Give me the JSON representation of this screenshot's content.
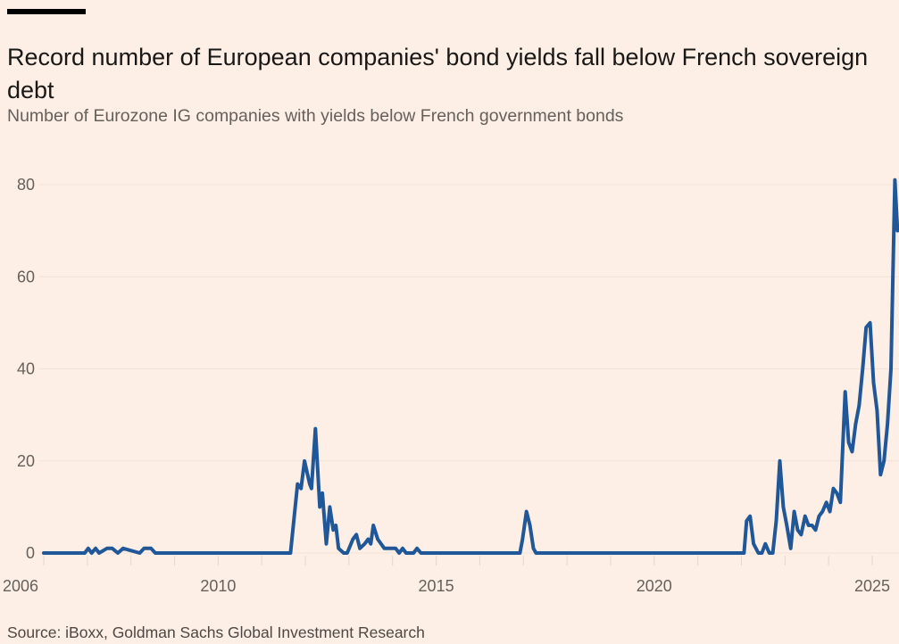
{
  "header": {
    "title": "Record number of European companies' bond yields fall below French sovereign debt",
    "subtitle": "Number of Eurozone IG companies with yields below French government bonds"
  },
  "footer": {
    "source": "Source: iBoxx, Goldman Sachs Global Investment Research"
  },
  "colors": {
    "background": "#fdefe5",
    "line": "#1f5799",
    "grid": "#f2e1d6",
    "text_muted": "#66605c"
  },
  "chart_data": {
    "type": "line",
    "title": "Record number of European companies' bond yields fall below French sovereign debt",
    "subtitle": "Number of Eurozone IG companies with yields below French government bonds",
    "xlabel": "",
    "ylabel": "",
    "xlim": [
      2006,
      2025.6
    ],
    "ylim": [
      0,
      80
    ],
    "grid": true,
    "y_ticks": [
      0,
      20,
      40,
      60,
      80
    ],
    "y_tick_labels": [
      "0",
      "20",
      "40",
      "60",
      "80"
    ],
    "x_ticks": [
      2006,
      2010,
      2015,
      2020,
      2025
    ],
    "x_tick_labels": [
      "2006",
      "2010",
      "2015",
      "2020",
      "2025"
    ],
    "x_minor_ticks": [
      2007,
      2008,
      2009,
      2011,
      2012,
      2013,
      2014,
      2016,
      2017,
      2018,
      2019,
      2021,
      2022,
      2023,
      2024
    ],
    "series": [
      {
        "name": "Eurozone IG companies with yields below French government bonds",
        "x": [
          2006.0,
          2006.94,
          2007.02,
          2007.1,
          2007.19,
          2007.27,
          2007.45,
          2007.57,
          2007.7,
          2007.82,
          2008.2,
          2008.3,
          2008.46,
          2008.56,
          2011.66,
          2011.82,
          2011.9,
          2011.98,
          2012.1,
          2012.14,
          2012.23,
          2012.33,
          2012.39,
          2012.48,
          2012.56,
          2012.64,
          2012.7,
          2012.76,
          2012.88,
          2012.96,
          2013.09,
          2013.17,
          2013.25,
          2013.36,
          2013.44,
          2013.5,
          2013.56,
          2013.66,
          2013.81,
          2014.07,
          2014.15,
          2014.23,
          2014.31,
          2014.48,
          2014.56,
          2014.65,
          2016.92,
          2016.98,
          2017.07,
          2017.15,
          2017.23,
          2017.29,
          2022.06,
          2022.12,
          2022.2,
          2022.28,
          2022.39,
          2022.47,
          2022.55,
          2022.64,
          2022.72,
          2022.8,
          2022.88,
          2022.96,
          2023.04,
          2023.13,
          2023.21,
          2023.29,
          2023.37,
          2023.46,
          2023.54,
          2023.62,
          2023.7,
          2023.78,
          2023.86,
          2023.95,
          2024.03,
          2024.11,
          2024.19,
          2024.27,
          2024.38,
          2024.46,
          2024.54,
          2024.62,
          2024.7,
          2024.78,
          2024.86,
          2024.95,
          2025.03,
          2025.11,
          2025.19,
          2025.27,
          2025.35,
          2025.43,
          2025.52,
          2025.58
        ],
        "y": [
          0,
          0,
          1,
          0,
          1,
          0,
          1,
          1,
          0,
          1,
          0,
          1,
          1,
          0,
          0,
          15,
          14,
          20,
          15,
          14,
          27,
          10,
          13,
          2,
          10,
          5,
          6,
          1,
          0,
          0,
          3,
          4,
          1,
          2,
          3,
          2,
          6,
          3,
          1,
          1,
          0,
          1,
          0,
          0,
          1,
          0,
          0,
          3,
          9,
          6,
          1,
          0,
          0,
          7,
          8,
          2,
          0,
          0,
          2,
          0,
          0,
          7,
          20,
          10,
          6,
          1,
          9,
          5,
          4,
          8,
          6,
          6,
          5,
          8,
          9,
          11,
          9,
          14,
          13,
          11,
          35,
          24,
          22,
          28,
          32,
          40,
          49,
          50,
          37,
          31,
          17,
          20,
          28,
          40,
          81,
          70
        ],
        "color": "#1f5799"
      }
    ]
  }
}
